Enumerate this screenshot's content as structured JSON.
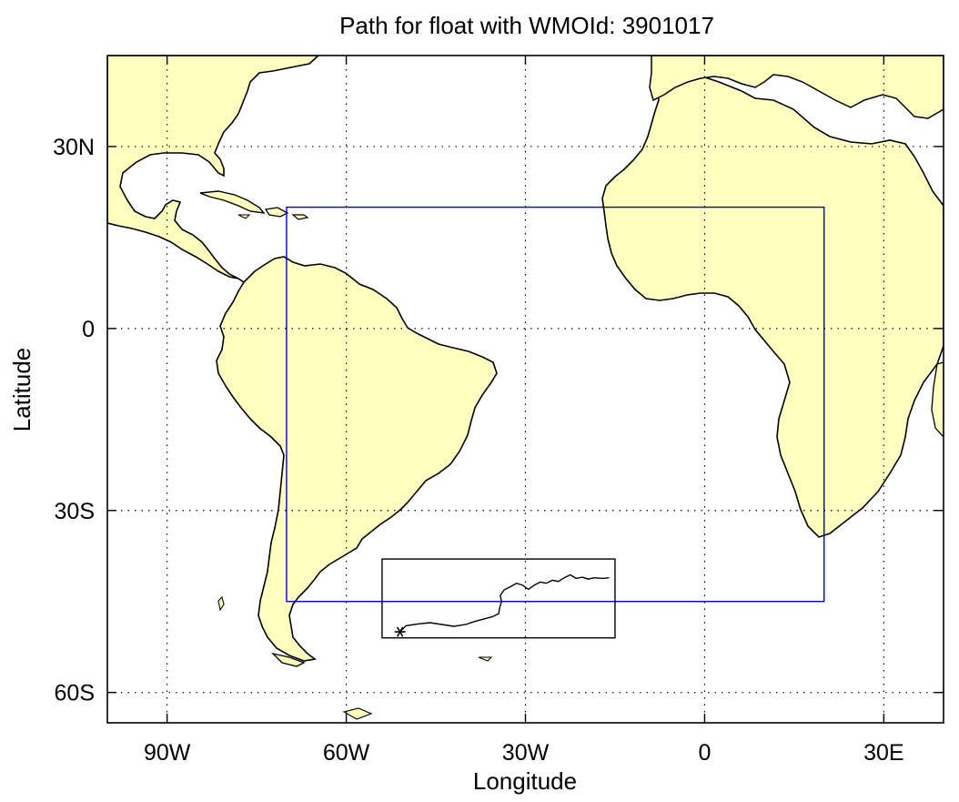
{
  "title": "Path for float with WMOId: 3901017",
  "x_axis": {
    "label": "Longitude",
    "ticks": [
      {
        "lon": -90,
        "label": "90W"
      },
      {
        "lon": -60,
        "label": "60W"
      },
      {
        "lon": -30,
        "label": "30W"
      },
      {
        "lon": 0,
        "label": "0"
      },
      {
        "lon": 30,
        "label": "30E"
      }
    ],
    "range": [
      -100,
      40
    ]
  },
  "y_axis": {
    "label": "Latitude",
    "ticks": [
      {
        "lat": 30,
        "label": "30N"
      },
      {
        "lat": 0,
        "label": "0"
      },
      {
        "lat": -30,
        "label": "30S"
      },
      {
        "lat": -60,
        "label": "60S"
      }
    ],
    "range": [
      -65,
      45
    ]
  },
  "grid": "dotted",
  "colors": {
    "land": "#ffffc0",
    "ocean": "#ffffff",
    "region_box": "#0000cc",
    "zoom_box": "#000000",
    "track": "#000000"
  },
  "region_box": {
    "lon_min": -70,
    "lon_max": 20,
    "lat_min": -45,
    "lat_max": 20
  },
  "zoom_box": {
    "lon_min": -54,
    "lon_max": -15,
    "lat_min": -51,
    "lat_max": -38
  },
  "float_track": {
    "start_marker": "asterisk",
    "points": [
      [
        -51,
        -50
      ],
      [
        -50,
        -49
      ],
      [
        -48,
        -48.7
      ],
      [
        -46,
        -48.5
      ],
      [
        -44,
        -48.8
      ],
      [
        -42,
        -49.1
      ],
      [
        -40,
        -48.8
      ],
      [
        -38.5,
        -48.3
      ],
      [
        -37,
        -47.9
      ],
      [
        -35.5,
        -47.5
      ],
      [
        -34.5,
        -47
      ],
      [
        -34.3,
        -46
      ],
      [
        -34,
        -45
      ],
      [
        -34.2,
        -44
      ],
      [
        -33.6,
        -43.1
      ],
      [
        -32.6,
        -42.6
      ],
      [
        -31.5,
        -42
      ],
      [
        -30.5,
        -42.3
      ],
      [
        -29.5,
        -43
      ],
      [
        -28.5,
        -42.3
      ],
      [
        -27.5,
        -41.8
      ],
      [
        -26.5,
        -42
      ],
      [
        -25.5,
        -41.5
      ],
      [
        -24.5,
        -41.7
      ],
      [
        -23.5,
        -41.1
      ],
      [
        -22.5,
        -40.6
      ],
      [
        -21.5,
        -41.2
      ],
      [
        -20.5,
        -41
      ],
      [
        -19.5,
        -41.3
      ],
      [
        -18.5,
        -41.1
      ],
      [
        -17,
        -41.2
      ],
      [
        -16,
        -41.1
      ]
    ]
  }
}
